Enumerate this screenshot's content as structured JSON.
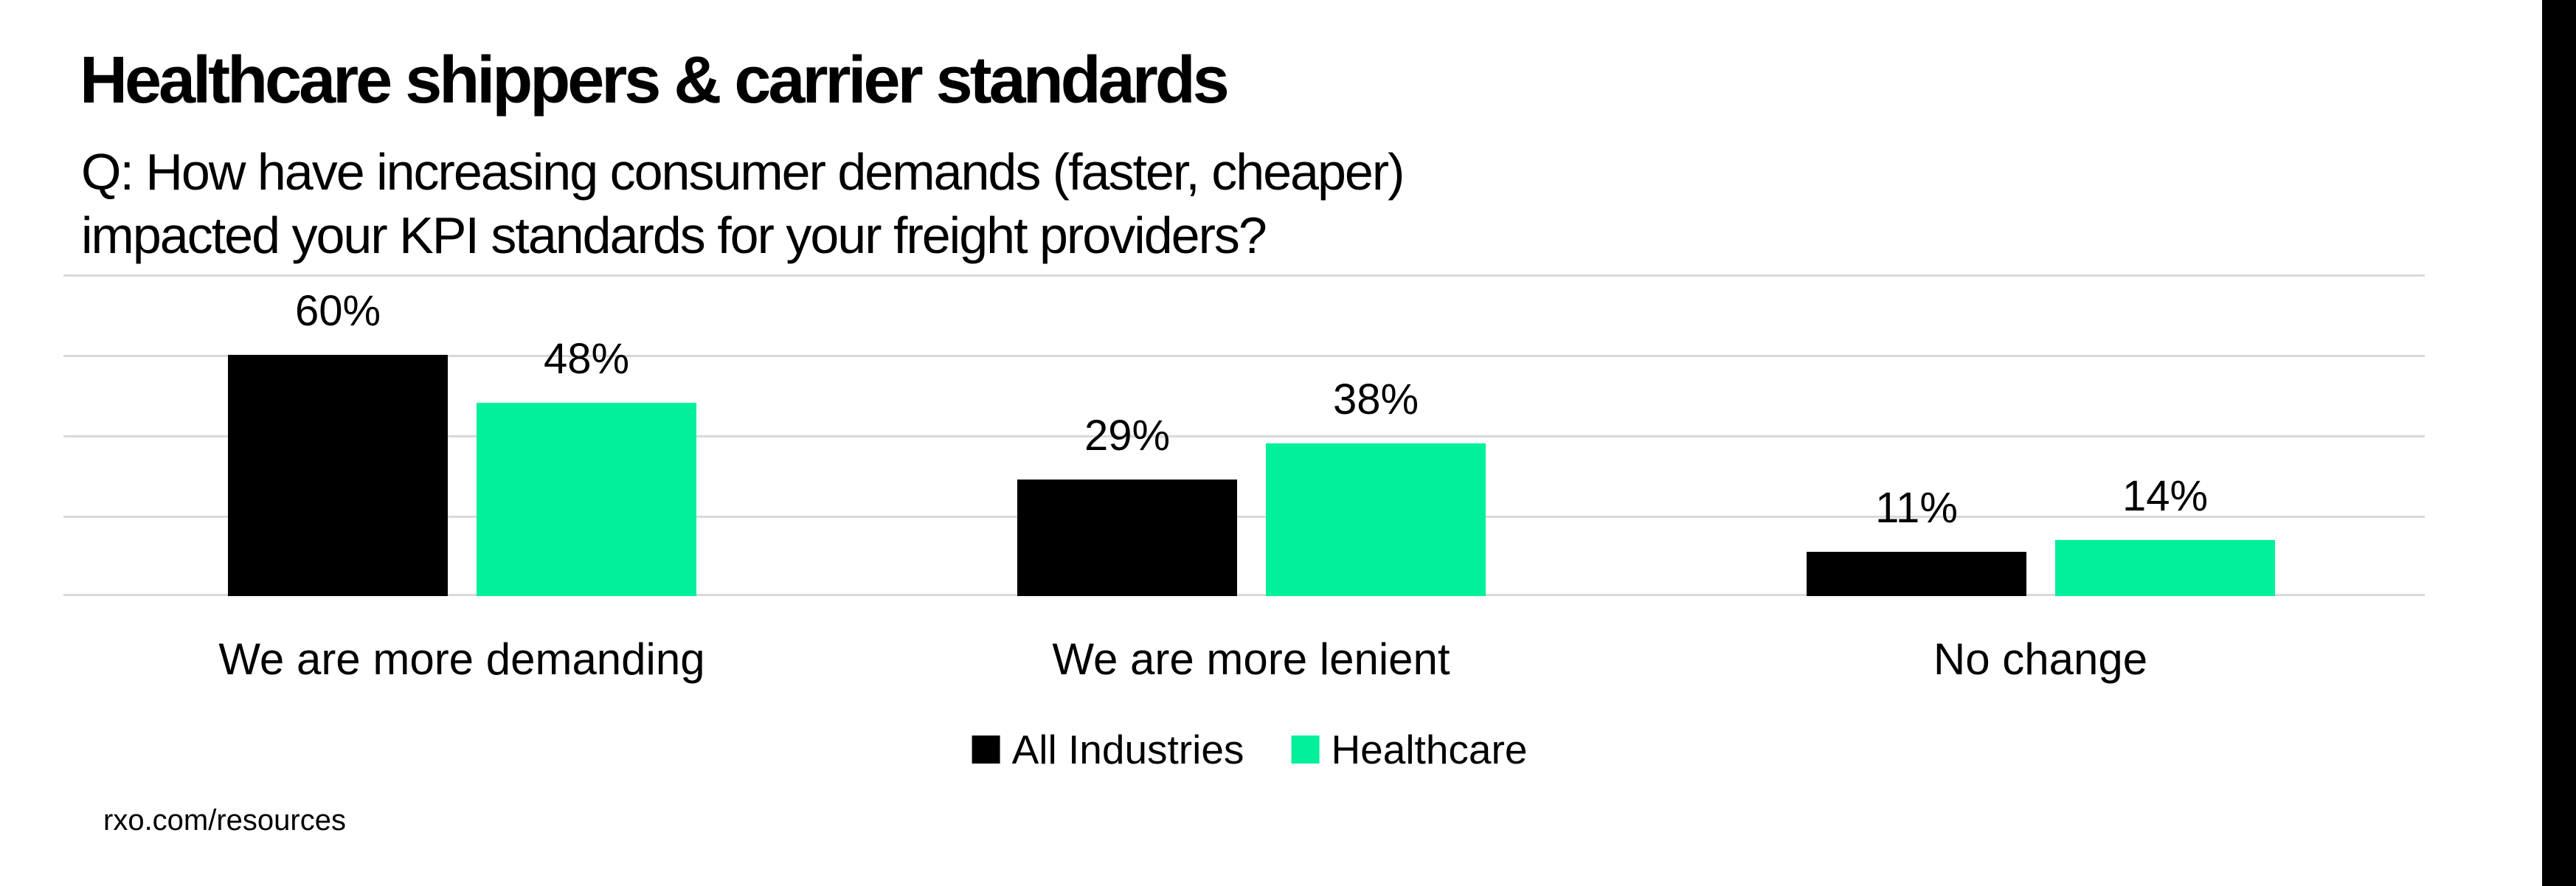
{
  "title": "Healthcare shippers & carrier standards",
  "subtitle_line1": "Q: How have increasing consumer demands (faster, cheaper)",
  "subtitle_line2": "impacted your KPI standards for your freight providers?",
  "footer": "rxo.com/resources",
  "colors": {
    "background": "#FFFFFF",
    "all_industries": "#000000",
    "healthcare": "#00F09B",
    "gridline": "#D9D9D9",
    "text": "#000000",
    "right_edge_bar": "#000000"
  },
  "legend": [
    {
      "label": "All Industries",
      "color": "#000000"
    },
    {
      "label": "Healthcare",
      "color": "#00F09B"
    }
  ],
  "chart_data": {
    "type": "bar",
    "categories": [
      "We are more demanding",
      "We are more lenient",
      "No change"
    ],
    "series": [
      {
        "name": "All Industries",
        "color": "#000000",
        "values": [
          60,
          29,
          11
        ]
      },
      {
        "name": "Healthcare",
        "color": "#00F09B",
        "values": [
          48,
          38,
          14
        ]
      }
    ],
    "value_label_unit": "%",
    "value_labels": [
      [
        "60%",
        "29%",
        "11%"
      ],
      [
        "48%",
        "38%",
        "14%"
      ]
    ],
    "ylim": [
      0,
      80
    ],
    "gridline_step_pct": 20,
    "grid": true,
    "y_axis_labels_shown": false,
    "legend_position": "bottom"
  }
}
